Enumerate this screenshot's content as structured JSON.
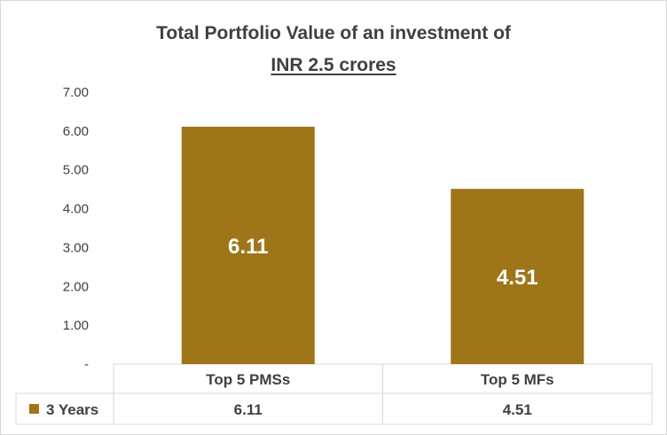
{
  "chart_data": {
    "type": "bar",
    "title": "Total Portfolio Value of an investment of",
    "subtitle": "INR 2.5 crores",
    "categories": [
      "Top 5 PMSs",
      "Top 5 MFs"
    ],
    "series": [
      {
        "name": "3 Years",
        "values": [
          6.11,
          4.51
        ],
        "color": "#9e7519"
      }
    ],
    "data_labels": [
      "6.11",
      "4.51"
    ],
    "ylim": [
      0,
      7
    ],
    "yticks": [
      "-",
      "1.00",
      "2.00",
      "3.00",
      "4.00",
      "5.00",
      "6.00",
      "7.00"
    ],
    "grid": false,
    "legend": "data-table",
    "data_table": {
      "row_label": "3 Years",
      "values": [
        "6.11",
        "4.51"
      ]
    }
  }
}
